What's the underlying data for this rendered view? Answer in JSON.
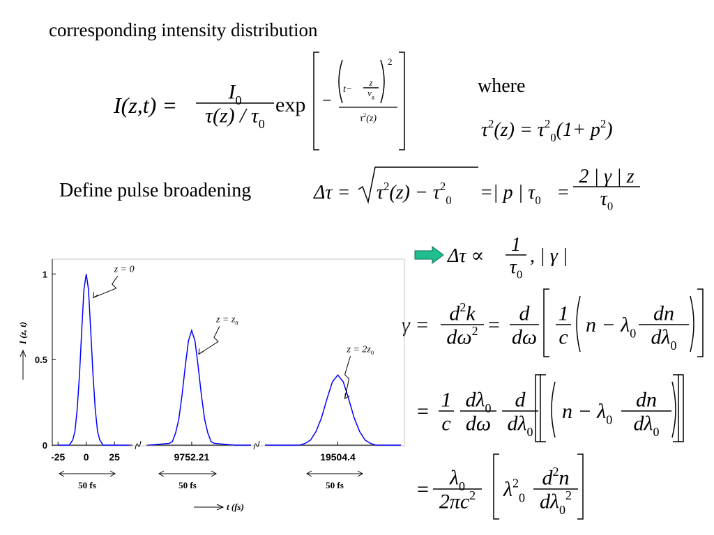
{
  "heading": "corresponding intensity distribution",
  "intensity": {
    "lhs": "I(z,t) =",
    "num": "I",
    "num_sub": "0",
    "den": "τ(z) / τ",
    "den_sub": "0",
    "exp": "exp",
    "minus": "−",
    "inner": "t−",
    "inner_z": "z",
    "inner_v": "v",
    "inner_g": "g",
    "inner_pow": "2",
    "inner_den": "τ",
    "inner_den_pow": "2",
    "inner_den_arg": "(z)"
  },
  "where": "where",
  "tau": {
    "a": "τ",
    "a_pow": "2",
    "b": "(z) = τ",
    "b_pow": "2",
    "b_sub": "0",
    "c": "(1+ p",
    "c_pow": "2",
    "d": ")"
  },
  "define": "Define pulse broadening",
  "broadening": {
    "lhs": "Δτ =",
    "r1": "τ",
    "r1_pow": "2",
    "r2": "(z) − τ",
    "r2_pow": "2",
    "r2_sub": "0",
    "mid": "=| p | τ",
    "mid_sub": "0",
    "eq": "=",
    "num": "2 | γ | z",
    "den": "τ",
    "den_sub": "0"
  },
  "proportional": {
    "lhs": "Δτ ∝",
    "num": "1",
    "den": "τ",
    "den_sub": "0",
    "rest": ",  | γ |"
  },
  "gamma": {
    "lhs": "γ =",
    "f1_num": "d",
    "f1_num_pow": "2",
    "f1_num_b": "k",
    "f1_den": "dω",
    "f1_den_pow": "2",
    "eq": "=",
    "f2_num": "d",
    "f2_den": "dω",
    "f3_num": "1",
    "f3_den": "c",
    "n": "n − λ",
    "n_sub": "0",
    "f4_num": "dn",
    "f4_den": "dλ",
    "f4_den_sub": "0"
  },
  "gamma2": {
    "eq": "=",
    "f1_num": "1",
    "f1_den": "c",
    "f2_num": "dλ",
    "f2_num_sub": "0",
    "f2_den": "dω",
    "f3_num": "d",
    "f3_den": "dλ",
    "f3_den_sub": "0",
    "n": "n − λ",
    "n_sub": "0",
    "f4_num": "dn",
    "f4_den": "dλ",
    "f4_den_sub": "0"
  },
  "gamma3": {
    "eq": "=",
    "f1_num": "λ",
    "f1_num_sub": "0",
    "f1_den": "2πc",
    "f1_den_pow": "2",
    "l": "λ",
    "l_pow": "2",
    "l_sub": "0",
    "f2_num": "d",
    "f2_num_pow": "2",
    "f2_num_b": "n",
    "f2_den": "dλ",
    "f2_den_sub": "0",
    "f2_den_pow": "2"
  },
  "chart_data": {
    "type": "line",
    "ylabel": "I (z, t)",
    "xlabel": "t (fs)",
    "color": "#0000ff",
    "ylim": [
      0,
      1.05
    ],
    "yticks": [
      0,
      0.5,
      1
    ],
    "panels": [
      {
        "xlim": [
          -27,
          41
        ],
        "xticks": [
          -25,
          0,
          25
        ],
        "x": [
          -25,
          -15,
          -12,
          -10,
          -8,
          -6,
          -4,
          -2,
          0,
          2,
          4,
          6,
          8,
          10,
          12,
          15,
          25,
          38
        ],
        "values": [
          0,
          0,
          0.03,
          0.08,
          0.21,
          0.41,
          0.67,
          0.91,
          1,
          0.91,
          0.67,
          0.41,
          0.21,
          0.08,
          0.03,
          0,
          0,
          0
        ],
        "annotation": "z = 0",
        "span_label": "50 fs"
      },
      {
        "xlim": [
          9710.21,
          9807.21
        ],
        "xticks": [
          9752.21
        ],
        "x": [
          9712.21,
          9731.21,
          9734.21,
          9737.21,
          9740.21,
          9743.21,
          9746.21,
          9749.21,
          9752.21,
          9755.21,
          9758.21,
          9761.21,
          9764.21,
          9767.21,
          9770.21,
          9773.21,
          9792.21,
          9807.21
        ],
        "values": [
          0,
          0.01,
          0.02,
          0.07,
          0.15,
          0.29,
          0.46,
          0.61,
          0.67,
          0.61,
          0.46,
          0.29,
          0.15,
          0.07,
          0.02,
          0.01,
          0,
          0
        ],
        "annotation": "z = z",
        "annotation_sub": "0",
        "span_label": "50 fs"
      },
      {
        "xlim": [
          19437.4,
          19562.4
        ],
        "xticks": [
          19504.4
        ],
        "x": [
          19437.4,
          19469.4,
          19474.4,
          19479.4,
          19484.4,
          19489.4,
          19494.4,
          19499.4,
          19504.4,
          19509.4,
          19514.4,
          19519.4,
          19524.4,
          19529.4,
          19534.4,
          19539.4,
          19562.4
        ],
        "values": [
          0,
          0,
          0.01,
          0.03,
          0.08,
          0.16,
          0.27,
          0.37,
          0.41,
          0.37,
          0.27,
          0.16,
          0.08,
          0.03,
          0.01,
          0,
          0
        ],
        "annotation": "z = 2z",
        "annotation_sub": "0",
        "span_label": "50 fs"
      }
    ]
  }
}
